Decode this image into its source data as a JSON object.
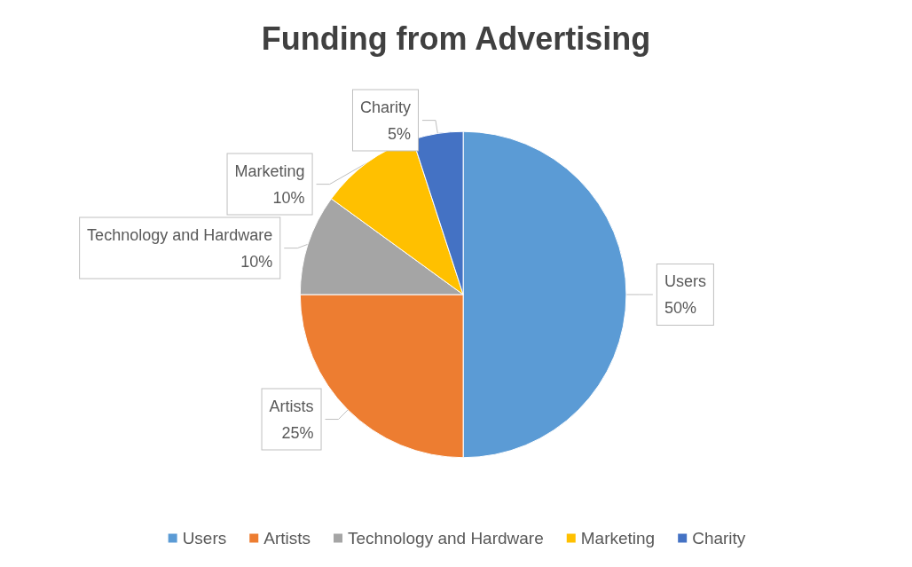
{
  "chart_data": {
    "type": "pie",
    "title": "Funding from Advertising",
    "categories": [
      "Users",
      "Artists",
      "Technology and Hardware",
      "Marketing",
      "Charity"
    ],
    "values": [
      50,
      25,
      10,
      10,
      5
    ],
    "value_labels": [
      "50%",
      "25%",
      "10%",
      "10%",
      "5%"
    ],
    "colors": [
      "#5b9bd5",
      "#ed7d31",
      "#a5a5a5",
      "#ffc000",
      "#4472c4"
    ],
    "legend": "bottom"
  }
}
